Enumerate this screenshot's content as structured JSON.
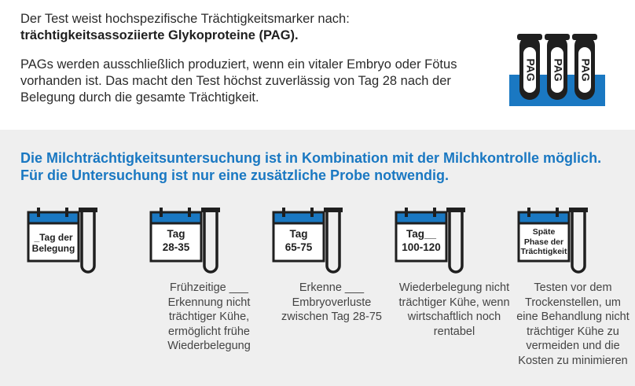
{
  "intro": {
    "line1": "Der Test weist hochspezifische Trächtigkeitsmarker nach:",
    "line2_bold": "trächtigkeitsassoziierte Glykoproteine (PAG).",
    "para2": "PAGs werden ausschließlich produziert, wenn ein vitaler Embryo oder Fötus vorhanden ist. Das macht den Test höchst zuverlässig von Tag 28 nach der Belegung durch die gesamte Trächtigkeit."
  },
  "tubes": [
    "PAG",
    "PAG",
    "PAG"
  ],
  "headline": "Die Milchträchtigkeitsuntersuchung  ist in Kombination mit der Milchkontrolle möglich. Für die Untersuchung ist nur eine zusätzliche Probe notwendig.",
  "colors": {
    "accent": "#1a78c2",
    "dark": "#1f1f1f",
    "grey_bg": "#efefef"
  },
  "steps": [
    {
      "cal_line1": "_Tag der",
      "cal_line2": "Belegung",
      "desc": ""
    },
    {
      "cal_line1": "Tag",
      "cal_line2": "28-35",
      "desc": "Frühzeitige ___ Erkennung nicht trächtiger Kühe, ermöglicht frühe Wiederbelegung"
    },
    {
      "cal_line1": "Tag",
      "cal_line2": "65-75",
      "desc": "Erkenne ___ Embryoverluste zwischen Tag 28-75"
    },
    {
      "cal_line1": "Tag__",
      "cal_line2": "100-120",
      "desc": "Wiederbelegung nicht trächtiger Kühe, wenn wirtschaftlich noch rentabel"
    },
    {
      "cal_line1": "Späte",
      "cal_line2": "Phase der",
      "cal_line3": "Trächtigkeit",
      "desc": "Testen vor dem Trockenstellen, um eine Behandlung nicht trächtiger Kühe zu vermeiden und die Kosten zu minimieren"
    }
  ]
}
